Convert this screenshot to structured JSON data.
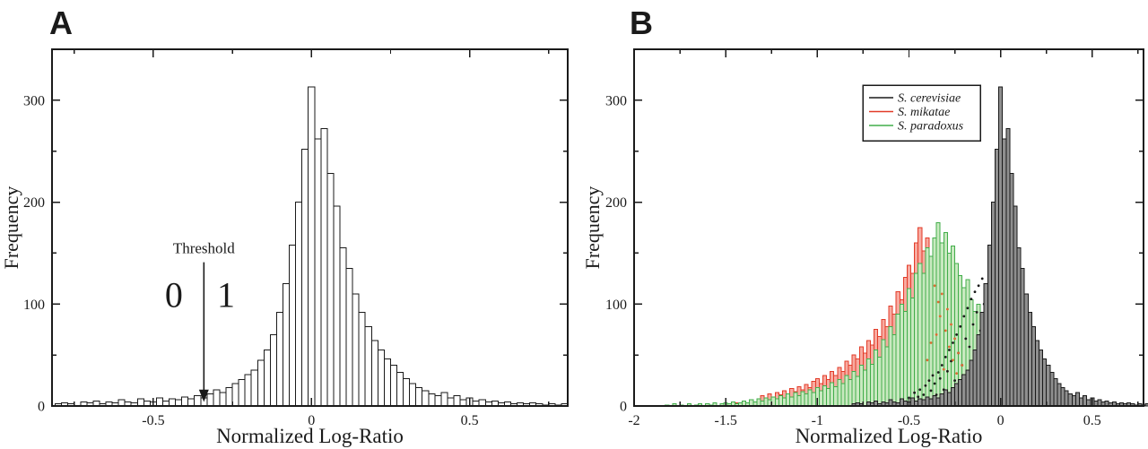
{
  "figure": {
    "background": "#ffffff",
    "panel_labels": [
      "A",
      "B"
    ]
  },
  "chart_data": [
    {
      "type": "bar",
      "panel_label": "A",
      "title": "",
      "xlabel": "Normalized Log-Ratio",
      "ylabel": "Frequency",
      "xlim": [
        -0.82,
        0.81
      ],
      "ylim": [
        0,
        350
      ],
      "xticks": [
        -0.5,
        0,
        0.5
      ],
      "xtick_labels": [
        "-0.5",
        "0",
        "0.5"
      ],
      "x_minor_step": 0.25,
      "yticks": [
        0,
        100,
        200,
        300
      ],
      "ytick_labels": [
        "0",
        "100",
        "200",
        "300"
      ],
      "y_minor_step": 50,
      "grid": false,
      "bin_width": 0.02,
      "annotation": {
        "label": "Threshold",
        "x": -0.34,
        "left_label": "0",
        "left_x": -0.435,
        "right_label": "1",
        "right_x": -0.27
      },
      "series": [
        {
          "id": "cerevisiae",
          "name": "S. cerevisiae",
          "line_color": "#1a1a1a",
          "fill_color": "#ffffff",
          "x0": -0.8,
          "heights": [
            2,
            3,
            2,
            0,
            4,
            3,
            5,
            2,
            4,
            3,
            6,
            4,
            3,
            7,
            5,
            4,
            8,
            5,
            7,
            6,
            9,
            7,
            10,
            8,
            12,
            16,
            13,
            18,
            22,
            26,
            31,
            35,
            45,
            55,
            70,
            92,
            120,
            158,
            200,
            252,
            313,
            262,
            272,
            228,
            196,
            155,
            135,
            110,
            92,
            78,
            64,
            55,
            46,
            40,
            33,
            27,
            22,
            18,
            15,
            12,
            10,
            13,
            8,
            10,
            6,
            8,
            5,
            6,
            4,
            5,
            3,
            4,
            2,
            3,
            2,
            3,
            2,
            1,
            2,
            1,
            2
          ]
        }
      ]
    },
    {
      "type": "bar",
      "panel_label": "B",
      "title": "",
      "xlabel": "Normalized Log-Ratio",
      "ylabel": "Frequency",
      "xlim": [
        -2.0,
        0.78
      ],
      "ylim": [
        0,
        350
      ],
      "xticks": [
        -2,
        -1.5,
        -1,
        -0.5,
        0,
        0.5
      ],
      "xtick_labels": [
        "-2",
        "-1.5",
        "-1",
        "-0.5",
        "0",
        "0.5"
      ],
      "x_minor_step": 0.25,
      "yticks": [
        0,
        100,
        200,
        300
      ],
      "ytick_labels": [
        "0",
        "100",
        "200",
        "300"
      ],
      "y_minor_step": 50,
      "grid": false,
      "bin_width": 0.02,
      "legend": {
        "position": "top-center",
        "entries": [
          {
            "label": "S. cerevisiae",
            "color": "#1a1a1a"
          },
          {
            "label": "S. mikatae",
            "color": "#e23b28"
          },
          {
            "label": "S. paradoxus",
            "color": "#41ad4a"
          }
        ]
      },
      "series": [
        {
          "id": "mikatae",
          "name": "S. mikatae",
          "line_color": "#e23b28",
          "fill_color": "#f8aaa0",
          "x0": -1.52,
          "heights": [
            1,
            0,
            2,
            0,
            3,
            2,
            4,
            3,
            6,
            4,
            7,
            10,
            8,
            12,
            9,
            13,
            11,
            15,
            12,
            17,
            14,
            19,
            16,
            21,
            18,
            24,
            27,
            22,
            30,
            26,
            34,
            30,
            38,
            34,
            44,
            40,
            50,
            46,
            58,
            52,
            64,
            60,
            75,
            68,
            85,
            78,
            98,
            90,
            112,
            104,
            126,
            138,
            130,
            160,
            175,
            152,
            165,
            142,
            125,
            110,
            95,
            78,
            62,
            48,
            35,
            25,
            17,
            12,
            8,
            6,
            4,
            3,
            2,
            1
          ]
        },
        {
          "id": "paradoxus",
          "name": "S. paradoxus",
          "line_color": "#41ad4a",
          "fill_color": "#c9e9c0",
          "x0": -1.82,
          "heights": [
            1,
            0,
            2,
            0,
            1,
            0,
            2,
            0,
            1,
            2,
            0,
            2,
            1,
            3,
            0,
            2,
            3,
            2,
            4,
            2,
            3,
            5,
            3,
            6,
            4,
            7,
            5,
            8,
            6,
            9,
            7,
            10,
            8,
            12,
            9,
            13,
            10,
            14,
            12,
            16,
            13,
            18,
            15,
            20,
            17,
            23,
            19,
            26,
            22,
            30,
            26,
            34,
            29,
            40,
            35,
            46,
            41,
            55,
            48,
            65,
            58,
            78,
            70,
            90,
            100,
            93,
            115,
            106,
            130,
            140,
            130,
            155,
            147,
            165,
            180,
            160,
            170,
            150,
            157,
            140,
            128,
            116,
            124,
            104,
            93,
            100,
            84,
            70,
            60,
            50,
            40,
            32,
            25,
            19,
            14,
            11,
            8,
            6,
            9,
            5,
            7,
            4,
            6,
            3,
            5,
            2,
            4,
            2,
            3,
            2,
            3,
            2,
            3,
            1,
            2,
            1,
            2,
            1
          ]
        },
        {
          "id": "cerevisiae",
          "name": "S. cerevisiae",
          "line_color": "#1a1a1a",
          "fill_color": "#8f8f8f",
          "x0": -0.8,
          "heights": [
            2,
            3,
            2,
            0,
            4,
            3,
            5,
            2,
            4,
            3,
            6,
            4,
            3,
            7,
            5,
            4,
            8,
            5,
            7,
            6,
            9,
            7,
            10,
            8,
            12,
            16,
            13,
            18,
            22,
            26,
            31,
            35,
            45,
            55,
            70,
            92,
            120,
            158,
            200,
            252,
            313,
            262,
            272,
            228,
            196,
            155,
            135,
            110,
            92,
            78,
            64,
            55,
            46,
            40,
            33,
            27,
            22,
            18,
            15,
            12,
            10,
            13,
            8,
            10,
            6,
            8,
            5,
            6,
            4,
            5,
            3,
            4,
            2,
            3,
            2,
            3,
            2,
            1,
            2,
            1,
            2
          ]
        }
      ],
      "overlap_dots": [
        {
          "id": "cerevisiae-hidden-outline",
          "color": "#1a1a1a",
          "points": [
            [
              -0.52,
              4
            ],
            [
              -0.5,
              8
            ],
            [
              -0.48,
              5
            ],
            [
              -0.47,
              13
            ],
            [
              -0.45,
              9
            ],
            [
              -0.44,
              16
            ],
            [
              -0.42,
              11
            ],
            [
              -0.41,
              20
            ],
            [
              -0.4,
              6
            ],
            [
              -0.39,
              25
            ],
            [
              -0.38,
              15
            ],
            [
              -0.37,
              30
            ],
            [
              -0.36,
              22
            ],
            [
              -0.35,
              11
            ],
            [
              -0.34,
              33
            ],
            [
              -0.33,
              27
            ],
            [
              -0.32,
              40
            ],
            [
              -0.31,
              16
            ],
            [
              -0.3,
              48
            ],
            [
              -0.29,
              34
            ],
            [
              -0.28,
              55
            ],
            [
              -0.27,
              44
            ],
            [
              -0.26,
              62
            ],
            [
              -0.25,
              25
            ],
            [
              -0.24,
              70
            ],
            [
              -0.23,
              52
            ],
            [
              -0.22,
              78
            ],
            [
              -0.21,
              40
            ],
            [
              -0.2,
              88
            ],
            [
              -0.19,
              66
            ],
            [
              -0.18,
              96
            ],
            [
              -0.17,
              58
            ],
            [
              -0.16,
              105
            ],
            [
              -0.15,
              80
            ],
            [
              -0.14,
              112
            ],
            [
              -0.13,
              92
            ],
            [
              -0.12,
              118
            ],
            [
              -0.11,
              74
            ],
            [
              -0.1,
              125
            ],
            [
              -0.09,
              100
            ],
            [
              -0.08,
              48
            ],
            [
              -0.07,
              112
            ],
            [
              -0.06,
              30
            ],
            [
              -0.05,
              85
            ]
          ]
        },
        {
          "id": "mikatae-hidden-outline",
          "color": "#dd6b33",
          "points": [
            [
              -0.36,
              118
            ],
            [
              -0.34,
              102
            ],
            [
              -0.33,
              88
            ],
            [
              -0.32,
              110
            ],
            [
              -0.3,
              74
            ],
            [
              -0.29,
              95
            ],
            [
              -0.28,
              58
            ],
            [
              -0.27,
              80
            ],
            [
              -0.26,
              45
            ],
            [
              -0.25,
              66
            ],
            [
              -0.24,
              32
            ],
            [
              -0.23,
              52
            ],
            [
              -0.22,
              22
            ],
            [
              -0.21,
              40
            ],
            [
              -0.2,
              15
            ],
            [
              -0.19,
              30
            ],
            [
              -0.18,
              24
            ],
            [
              -0.16,
              18
            ],
            [
              -0.14,
              12
            ],
            [
              -0.12,
              8
            ],
            [
              -0.38,
              62
            ],
            [
              -0.4,
              45
            ],
            [
              -0.35,
              70
            ],
            [
              -0.31,
              36
            ]
          ]
        }
      ]
    }
  ]
}
